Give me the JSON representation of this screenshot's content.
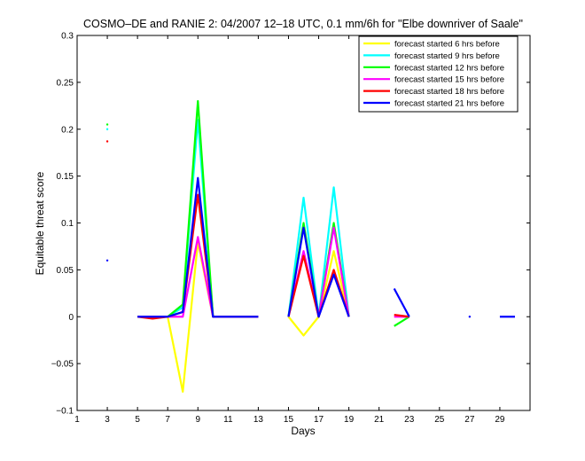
{
  "chart_data": {
    "type": "line",
    "title": "COSMO–DE and RANIE 2: 04/2007 12–18 UTC, 0.1 mm/6h for \"Elbe downriver of Saale\"",
    "xlabel": "Days",
    "ylabel": "Equitable threat score",
    "xlim": [
      1,
      31
    ],
    "ylim": [
      -0.1,
      0.3
    ],
    "xticks": [
      1,
      3,
      5,
      7,
      9,
      11,
      13,
      15,
      17,
      19,
      21,
      23,
      25,
      27,
      29
    ],
    "yticks": [
      -0.1,
      -0.05,
      0,
      0.05,
      0.1,
      0.15,
      0.2,
      0.25,
      0.3
    ],
    "ytick_labels": [
      "−0.1",
      "−0.05",
      "0",
      "0.05",
      "0.1",
      "0.15",
      "0.2",
      "0.25",
      "0.3"
    ],
    "grid": false,
    "legend_position": "top-right",
    "series": [
      {
        "name": "forecast started 6 hrs before",
        "color": "#ffff00",
        "values": [
          null,
          null,
          null,
          null,
          0,
          0,
          0,
          -0.08,
          0.08,
          0,
          0,
          0,
          0,
          null,
          0,
          -0.02,
          0,
          0.07,
          0,
          null,
          null,
          null,
          null,
          null,
          null,
          null,
          null,
          null,
          null,
          null,
          null
        ]
      },
      {
        "name": "forecast started 9 hrs before",
        "color": "#00ffff",
        "values": [
          null,
          null,
          0.2,
          null,
          0,
          0,
          0,
          0.01,
          0.21,
          0,
          0,
          0,
          0,
          null,
          0,
          0.127,
          0,
          0.138,
          0,
          null,
          null,
          null,
          null,
          null,
          null,
          null,
          null,
          null,
          null,
          null,
          null
        ]
      },
      {
        "name": "forecast started 12 hrs before",
        "color": "#00ff00",
        "values": [
          null,
          null,
          0.205,
          null,
          0,
          0,
          0,
          0.013,
          0.23,
          0,
          0,
          0,
          0,
          null,
          0,
          0.1,
          0,
          0.1,
          0,
          null,
          null,
          -0.01,
          0,
          null,
          null,
          null,
          null,
          null,
          null,
          null,
          null
        ]
      },
      {
        "name": "forecast started 15 hrs before",
        "color": "#ff00ff",
        "values": [
          null,
          null,
          null,
          null,
          0,
          0,
          0,
          0,
          0.085,
          0,
          0,
          0,
          0,
          null,
          0,
          0.07,
          0,
          0.095,
          0,
          null,
          null,
          0,
          0,
          null,
          null,
          null,
          null,
          null,
          null,
          null,
          null
        ]
      },
      {
        "name": "forecast started 18 hrs before",
        "color": "#ff0000",
        "values": [
          null,
          null,
          0.187,
          null,
          0,
          -0.002,
          0,
          0.005,
          0.13,
          0,
          0,
          0,
          0,
          null,
          0,
          0.065,
          0,
          0.05,
          0,
          null,
          null,
          0.002,
          0,
          null,
          null,
          null,
          null,
          null,
          null,
          null,
          null
        ]
      },
      {
        "name": "forecast started 21 hrs before",
        "color": "#0000ff",
        "values": [
          null,
          null,
          0.06,
          null,
          0,
          0,
          0,
          0.005,
          0.148,
          0,
          0,
          0,
          0,
          null,
          0,
          0.095,
          0,
          0.045,
          0,
          null,
          null,
          0.03,
          0,
          null,
          null,
          null,
          0,
          null,
          0,
          0,
          null
        ]
      }
    ]
  }
}
